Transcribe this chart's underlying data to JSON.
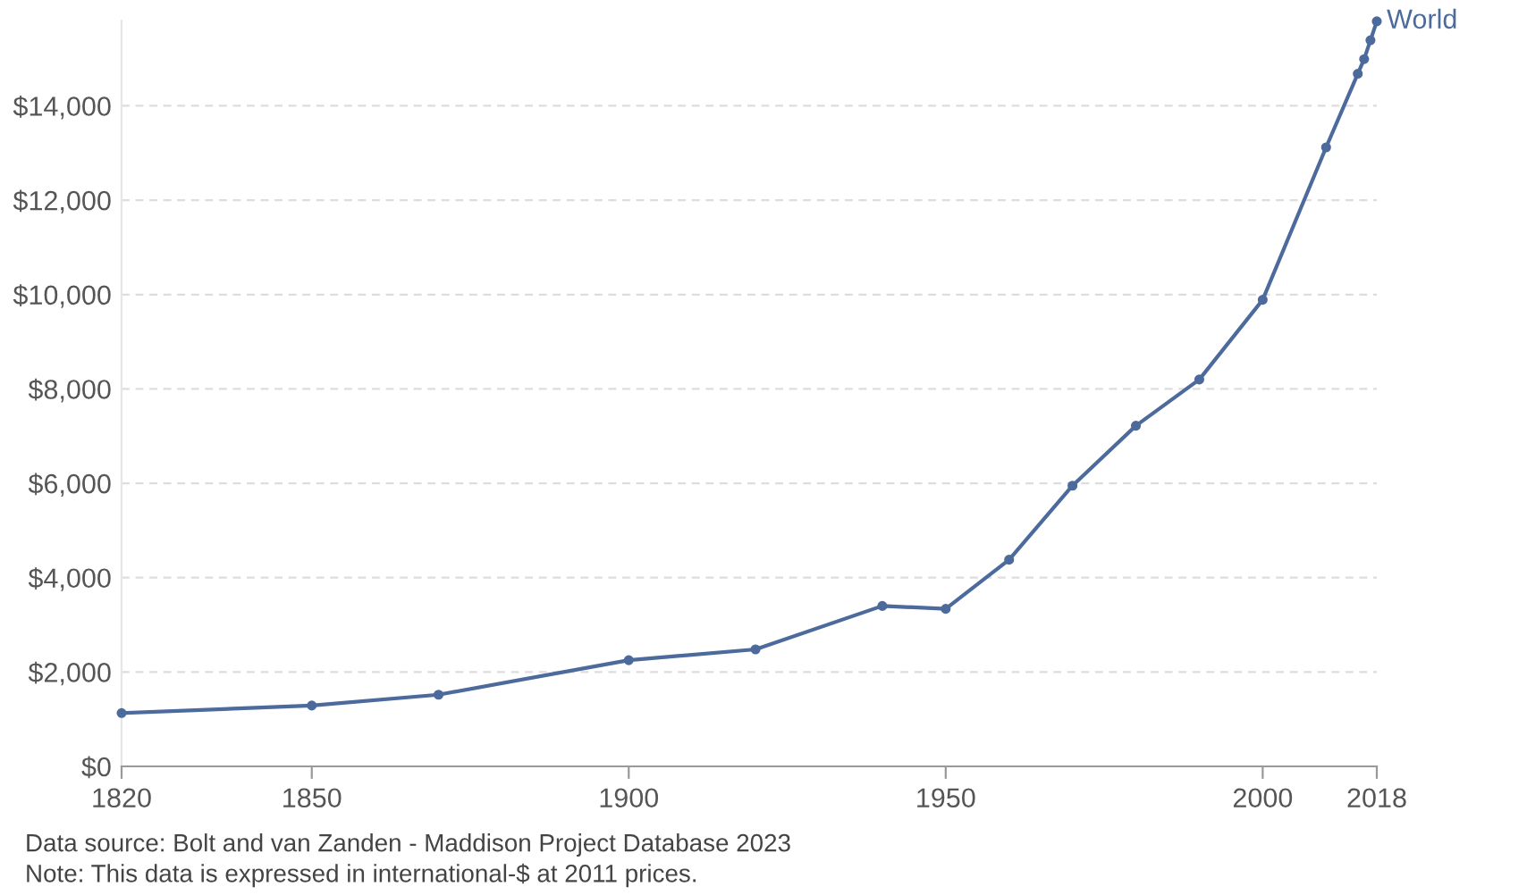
{
  "chart_data": {
    "type": "line",
    "x": [
      1820,
      1850,
      1870,
      1900,
      1920,
      1940,
      1950,
      1960,
      1970,
      1980,
      1990,
      2000,
      2010,
      2015,
      2016,
      2017,
      2018
    ],
    "series": [
      {
        "name": "World",
        "color": "#4c6a9c",
        "values": [
          1130,
          1290,
          1520,
          2250,
          2480,
          3400,
          3340,
          4380,
          5950,
          7220,
          8200,
          9890,
          13120,
          14680,
          14990,
          15390,
          15790
        ]
      }
    ],
    "xlim": [
      1820,
      2018
    ],
    "xticks": [
      1820,
      1850,
      1900,
      1950,
      2000,
      2018
    ],
    "ylim": [
      0,
      15800
    ],
    "yticks": [
      {
        "value": 0,
        "label": "$0"
      },
      {
        "value": 2000,
        "label": "$2,000"
      },
      {
        "value": 4000,
        "label": "$4,000"
      },
      {
        "value": 6000,
        "label": "$6,000"
      },
      {
        "value": 8000,
        "label": "$8,000"
      },
      {
        "value": 10000,
        "label": "$10,000"
      },
      {
        "value": 12000,
        "label": "$12,000"
      },
      {
        "value": 14000,
        "label": "$14,000"
      }
    ],
    "grid": "y",
    "marker": "circle",
    "line_style": "solid",
    "annotations": [
      "Data source: Bolt and van Zanden - Maddison Project Database 2023",
      "Note: This data is expressed in international-$ at 2011 prices."
    ]
  }
}
